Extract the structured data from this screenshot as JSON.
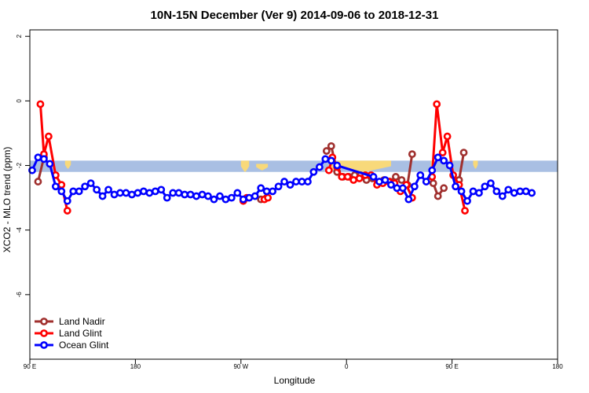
{
  "chart_data": {
    "type": "line",
    "title": "10N-15N December (Ver 9)   2014-09-06 to 2018-12-31",
    "xlabel": "Longitude",
    "ylabel": "XCO2 - MLO trend (ppm)",
    "xlim": [
      90,
      540
    ],
    "ylim": [
      -8,
      2.2
    ],
    "x_ticks": [
      {
        "value": 90,
        "label": "90 E"
      },
      {
        "value": 180,
        "label": "180"
      },
      {
        "value": 270,
        "label": "90 W"
      },
      {
        "value": 360,
        "label": "0"
      },
      {
        "value": 450,
        "label": "90 E"
      },
      {
        "value": 540,
        "label": "180"
      }
    ],
    "y_ticks": [
      {
        "value": 2,
        "label": "2"
      },
      {
        "value": 0,
        "label": "0"
      },
      {
        "value": -2,
        "label": "-2"
      },
      {
        "value": -4,
        "label": "-4"
      },
      {
        "value": -6,
        "label": "-6"
      }
    ],
    "band": {
      "y_min": -2.2,
      "y_max": -1.85,
      "color": "#a9bfe3"
    },
    "land_bumps": {
      "color": "#f8d97a",
      "items": [
        {
          "x_min": 120,
          "x_max": 125,
          "y_top": -1.85,
          "y_bottom": -2.1
        },
        {
          "x_min": 270,
          "x_max": 277,
          "y_top": -1.85,
          "y_bottom": -2.2
        },
        {
          "x_min": 283,
          "x_max": 293,
          "y_top": -1.95,
          "y_bottom": -2.15
        },
        {
          "x_min": 345,
          "x_max": 350,
          "y_top": -1.85,
          "y_bottom": -2.2
        },
        {
          "x_min": 352,
          "x_max": 398,
          "y_top": -1.85,
          "y_bottom": -2.2
        },
        {
          "x_min": 432,
          "x_max": 436,
          "y_top": -1.85,
          "y_bottom": -2.2
        },
        {
          "x_min": 468,
          "x_max": 472,
          "y_top": -1.85,
          "y_bottom": -2.1
        }
      ]
    },
    "series": [
      {
        "name": "Ocean Glint",
        "color": "#0000ff",
        "points": [
          [
            92,
            -2.15
          ],
          [
            97,
            -1.75
          ],
          [
            102,
            -1.8
          ],
          [
            107,
            -1.95
          ],
          [
            112,
            -2.65
          ],
          [
            117,
            -2.8
          ],
          [
            122,
            -3.1
          ],
          [
            127,
            -2.8
          ],
          [
            132,
            -2.8
          ],
          [
            137,
            -2.65
          ],
          [
            142,
            -2.55
          ],
          [
            147,
            -2.75
          ],
          [
            152,
            -2.95
          ],
          [
            157,
            -2.75
          ],
          [
            162,
            -2.9
          ],
          [
            167,
            -2.85
          ],
          [
            172,
            -2.85
          ],
          [
            177,
            -2.9
          ],
          [
            182,
            -2.85
          ],
          [
            187,
            -2.8
          ],
          [
            192,
            -2.85
          ],
          [
            197,
            -2.8
          ],
          [
            202,
            -2.75
          ],
          [
            207,
            -3.0
          ],
          [
            212,
            -2.85
          ],
          [
            217,
            -2.85
          ],
          [
            222,
            -2.9
          ],
          [
            227,
            -2.9
          ],
          [
            232,
            -2.95
          ],
          [
            237,
            -2.9
          ],
          [
            242,
            -2.95
          ],
          [
            247,
            -3.05
          ],
          [
            252,
            -2.95
          ],
          [
            257,
            -3.05
          ],
          [
            262,
            -3.0
          ],
          [
            267,
            -2.85
          ],
          [
            272,
            -3.05
          ],
          [
            277,
            -3.0
          ],
          [
            282,
            -2.95
          ],
          [
            287,
            -2.7
          ],
          [
            292,
            -2.8
          ],
          [
            297,
            -2.8
          ],
          [
            302,
            -2.65
          ],
          [
            307,
            -2.5
          ],
          [
            312,
            -2.6
          ],
          [
            317,
            -2.5
          ],
          [
            322,
            -2.5
          ],
          [
            327,
            -2.5
          ],
          [
            332,
            -2.2
          ],
          [
            337,
            -2.05
          ],
          [
            342,
            -1.8
          ],
          [
            347,
            -1.85
          ],
          [
            352,
            -2.0
          ],
          [
            383,
            -2.35
          ],
          [
            388,
            -2.5
          ],
          [
            393,
            -2.45
          ],
          [
            398,
            -2.6
          ],
          [
            403,
            -2.7
          ],
          [
            408,
            -2.7
          ],
          [
            413,
            -3.05
          ],
          [
            418,
            -2.65
          ],
          [
            423,
            -2.3
          ],
          [
            428,
            -2.5
          ],
          [
            433,
            -2.15
          ],
          [
            438,
            -1.75
          ],
          [
            443,
            -1.85
          ],
          [
            448,
            -2.0
          ],
          [
            453,
            -2.65
          ],
          [
            458,
            -2.8
          ],
          [
            463,
            -3.1
          ],
          [
            468,
            -2.8
          ],
          [
            473,
            -2.85
          ],
          [
            478,
            -2.65
          ],
          [
            483,
            -2.55
          ],
          [
            488,
            -2.8
          ],
          [
            493,
            -2.95
          ],
          [
            498,
            -2.75
          ],
          [
            503,
            -2.85
          ],
          [
            508,
            -2.8
          ],
          [
            513,
            -2.8
          ],
          [
            518,
            -2.85
          ]
        ]
      },
      {
        "name": "Land Glint",
        "color": "#ff0000",
        "points": [
          [
            99,
            -0.1
          ],
          [
            102,
            -1.65
          ],
          [
            106,
            -1.1
          ],
          [
            112,
            -2.3
          ],
          [
            117,
            -2.6
          ],
          [
            122,
            -3.4
          ]
        ],
        "extra_segments": [
          [
            [
              272,
              -3.1
            ],
            [
              275,
              -3.0
            ]
          ],
          [
            [
              290,
              -3.05
            ],
            [
              293,
              -3.0
            ]
          ],
          [
            [
              345,
              -2.15
            ],
            [
              348,
              -1.75
            ],
            [
              352,
              -2.05
            ],
            [
              356,
              -2.35
            ],
            [
              361,
              -2.35
            ],
            [
              366,
              -2.45
            ],
            [
              371,
              -2.4
            ],
            [
              376,
              -2.3
            ],
            [
              381,
              -2.3
            ],
            [
              386,
              -2.6
            ],
            [
              391,
              -2.55
            ],
            [
              396,
              -2.5
            ],
            [
              401,
              -2.55
            ],
            [
              406,
              -2.8
            ],
            [
              411,
              -2.6
            ],
            [
              416,
              -3.0
            ]
          ],
          [
            [
              433,
              -2.35
            ],
            [
              437,
              -0.1
            ],
            [
              442,
              -1.6
            ],
            [
              446,
              -1.1
            ],
            [
              451,
              -2.3
            ],
            [
              456,
              -2.6
            ],
            [
              461,
              -3.4
            ]
          ]
        ]
      },
      {
        "name": "Land Nadir",
        "color": "#a0302e",
        "points": [
          [
            97,
            -2.5
          ],
          [
            102,
            -1.75
          ]
        ],
        "extra_segments": [
          [
            [
              287,
              -3.05
            ],
            [
              292,
              -3.0
            ]
          ],
          [
            [
              343,
              -1.55
            ],
            [
              347,
              -1.4
            ],
            [
              352,
              -2.2
            ],
            [
              357,
              -2.35
            ],
            [
              362,
              -2.35
            ],
            [
              367,
              -2.3
            ],
            [
              372,
              -2.3
            ],
            [
              377,
              -2.45
            ],
            [
              382,
              -2.4
            ],
            [
              387,
              -2.55
            ],
            [
              392,
              -2.45
            ],
            [
              397,
              -2.5
            ],
            [
              402,
              -2.35
            ],
            [
              407,
              -2.45
            ],
            [
              412,
              -2.6
            ],
            [
              416,
              -1.65
            ]
          ],
          [
            [
              434,
              -2.55
            ],
            [
              438,
              -2.95
            ],
            [
              443,
              -2.7
            ]
          ],
          [
            [
              456,
              -2.45
            ],
            [
              460,
              -1.6
            ]
          ]
        ]
      }
    ],
    "legend": {
      "position": "bottom-left",
      "entries": [
        {
          "label": "Land Nadir",
          "color": "#a0302e"
        },
        {
          "label": "Land Glint",
          "color": "#ff0000"
        },
        {
          "label": "Ocean Glint",
          "color": "#0000ff"
        }
      ]
    }
  }
}
